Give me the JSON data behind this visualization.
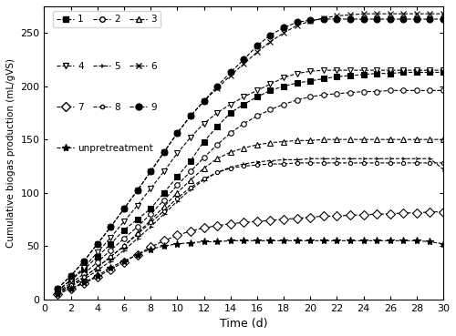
{
  "days": [
    1,
    2,
    3,
    4,
    5,
    6,
    7,
    8,
    9,
    10,
    11,
    12,
    13,
    14,
    15,
    16,
    17,
    18,
    19,
    20,
    21,
    22,
    23,
    24,
    25,
    26,
    27,
    28,
    29,
    30
  ],
  "series": {
    "1": [
      8,
      18,
      28,
      40,
      52,
      65,
      75,
      85,
      100,
      115,
      130,
      148,
      162,
      175,
      183,
      190,
      196,
      200,
      203,
      205,
      207,
      209,
      210,
      211,
      212,
      212,
      213,
      213,
      213,
      213
    ],
    "2": [
      7,
      15,
      24,
      35,
      46,
      57,
      68,
      80,
      93,
      107,
      120,
      133,
      145,
      156,
      165,
      172,
      178,
      183,
      187,
      190,
      192,
      193,
      194,
      195,
      195,
      196,
      196,
      196,
      196,
      196
    ],
    "3": [
      6,
      13,
      21,
      30,
      40,
      50,
      62,
      74,
      87,
      100,
      112,
      123,
      132,
      138,
      142,
      145,
      147,
      148,
      149,
      149,
      150,
      150,
      150,
      150,
      150,
      150,
      150,
      150,
      150,
      150
    ],
    "4": [
      8,
      18,
      30,
      44,
      58,
      73,
      88,
      104,
      120,
      137,
      152,
      165,
      175,
      183,
      190,
      196,
      202,
      208,
      212,
      214,
      215,
      215,
      215,
      215,
      215,
      215,
      215,
      215,
      215,
      215
    ],
    "5": [
      6,
      12,
      19,
      27,
      36,
      46,
      57,
      68,
      80,
      92,
      103,
      112,
      119,
      124,
      127,
      129,
      130,
      131,
      131,
      132,
      132,
      132,
      132,
      132,
      132,
      132,
      132,
      132,
      132,
      122
    ],
    "6": [
      10,
      22,
      36,
      52,
      68,
      85,
      102,
      120,
      138,
      156,
      172,
      186,
      198,
      210,
      221,
      232,
      242,
      250,
      257,
      261,
      264,
      266,
      267,
      268,
      268,
      268,
      268,
      268,
      268,
      268
    ],
    "7": [
      5,
      10,
      15,
      21,
      28,
      35,
      42,
      49,
      55,
      60,
      64,
      67,
      69,
      71,
      72,
      73,
      74,
      75,
      76,
      77,
      78,
      78,
      79,
      79,
      80,
      80,
      81,
      81,
      82,
      82
    ],
    "8": [
      6,
      13,
      21,
      30,
      40,
      50,
      61,
      72,
      83,
      95,
      105,
      113,
      119,
      123,
      125,
      126,
      127,
      127,
      128,
      128,
      128,
      128,
      128,
      128,
      128,
      128,
      128,
      128,
      128,
      128
    ],
    "9": [
      10,
      22,
      36,
      52,
      68,
      85,
      102,
      120,
      138,
      156,
      172,
      186,
      200,
      213,
      225,
      238,
      248,
      255,
      260,
      262,
      263,
      263,
      263,
      263,
      263,
      263,
      263,
      263,
      263,
      263
    ],
    "unpretreatment": [
      5,
      10,
      16,
      22,
      30,
      36,
      42,
      47,
      50,
      52,
      53,
      54,
      54,
      55,
      55,
      55,
      55,
      55,
      55,
      55,
      55,
      55,
      55,
      55,
      55,
      55,
      55,
      55,
      54,
      52
    ]
  },
  "xlabel": "Time (d)",
  "ylabel": "Cumulative biogas production (mL/gVS)",
  "xlim": [
    0,
    30
  ],
  "ylim": [
    0,
    275
  ],
  "xticks": [
    0,
    2,
    4,
    6,
    8,
    10,
    12,
    14,
    16,
    18,
    20,
    22,
    24,
    26,
    28,
    30
  ],
  "yticks": [
    0,
    50,
    100,
    150,
    200,
    250
  ],
  "marker_styles": {
    "1": "s",
    "2": "o",
    "3": "^",
    "4": "v",
    "5": "4",
    "6": "x",
    "7": "D",
    "8": "o",
    "unpretreatment": "*"
  },
  "marker_filled": {
    "1": true,
    "2": false,
    "3": false,
    "4": false,
    "5": false,
    "6": false,
    "7": false,
    "8": false,
    "9": true,
    "unpretreatment": true
  },
  "marker_sizes": {
    "1": 4,
    "2": 4,
    "3": 4,
    "4": 5,
    "5": 4,
    "6": 5,
    "7": 5,
    "8": 3,
    "9": 5,
    "unpretreatment": 6
  },
  "legend_fontsize": 7.5
}
